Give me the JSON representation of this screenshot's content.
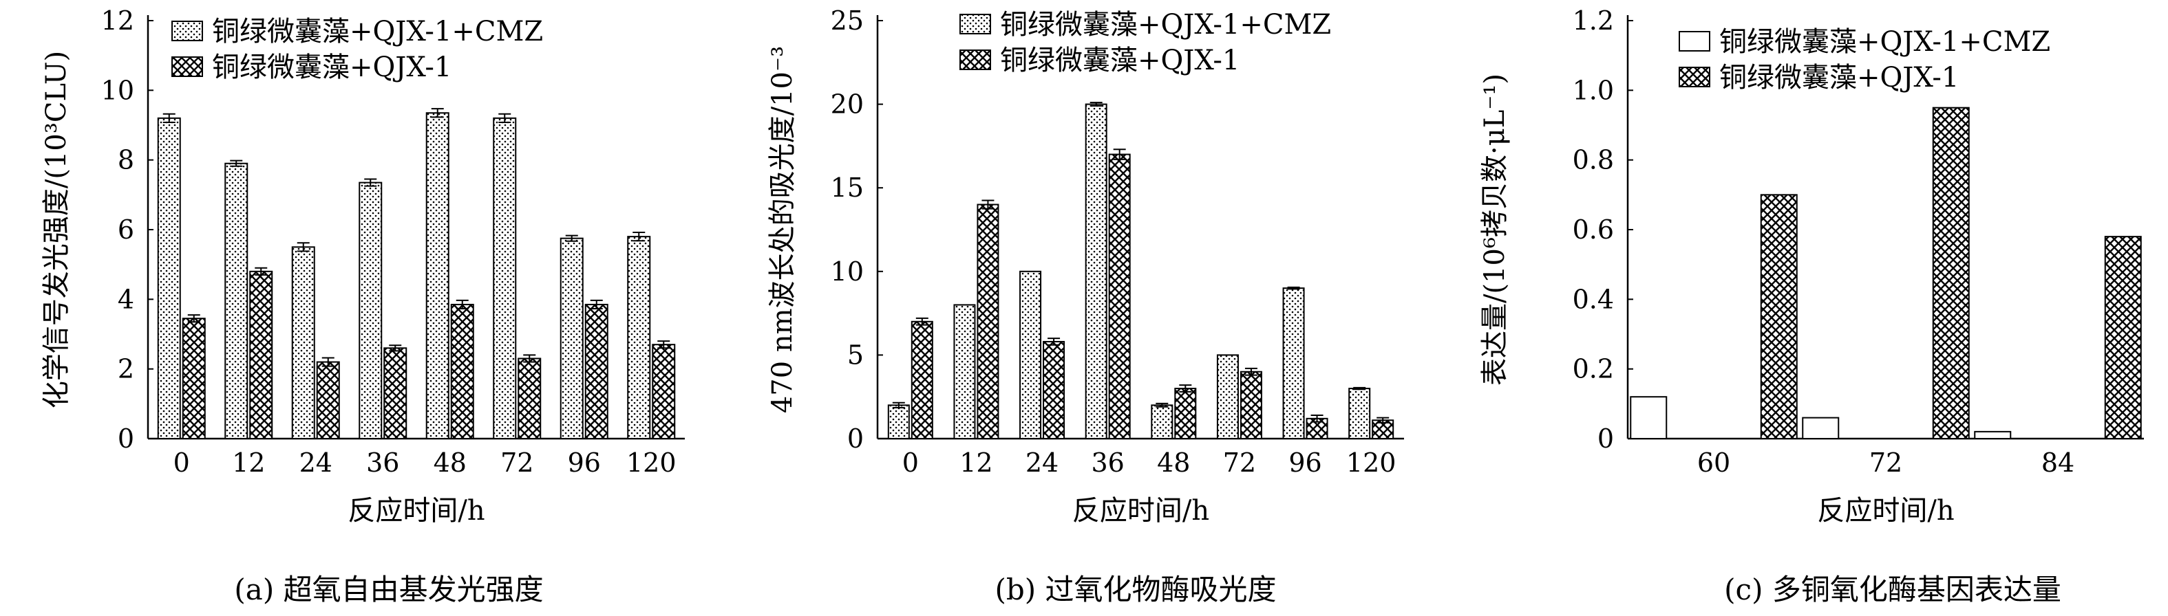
{
  "chart_data": [
    {
      "type": "bar",
      "caption": "(a) 超氧自由基发光强度",
      "xlabel": "反应时间/h",
      "ylabel": "化学信号发光强度/(10³CLU)",
      "ylim": [
        0,
        12
      ],
      "yticks": [
        "0",
        "2",
        "4",
        "6",
        "8",
        "10",
        "12"
      ],
      "categories": [
        "0",
        "12",
        "24",
        "36",
        "48",
        "72",
        "96",
        "120"
      ],
      "legend_position": "top",
      "series": [
        {
          "name": "铜绿微囊藻+QJX-1+CMZ",
          "pattern": "dots",
          "values": [
            9.2,
            7.9,
            5.5,
            7.35,
            9.35,
            9.2,
            5.75,
            5.8
          ],
          "errors": [
            0.12,
            0.08,
            0.12,
            0.1,
            0.12,
            0.12,
            0.08,
            0.12
          ]
        },
        {
          "name": "铜绿微囊藻+QJX-1",
          "pattern": "crosshatch",
          "values": [
            3.45,
            4.8,
            2.2,
            2.6,
            3.85,
            2.3,
            3.85,
            2.7
          ],
          "errors": [
            0.1,
            0.1,
            0.12,
            0.08,
            0.12,
            0.1,
            0.12,
            0.1
          ]
        }
      ]
    },
    {
      "type": "bar",
      "caption": "(b) 过氧化物酶吸光度",
      "xlabel": "反应时间/h",
      "ylabel": "470 nm波长处的吸光度/10⁻³",
      "ylim": [
        0,
        25
      ],
      "yticks": [
        "0",
        "5",
        "10",
        "15",
        "20",
        "25"
      ],
      "categories": [
        "0",
        "12",
        "24",
        "36",
        "48",
        "72",
        "96",
        "120"
      ],
      "legend_position": "top",
      "series": [
        {
          "name": "铜绿微囊藻+QJX-1+CMZ",
          "pattern": "dots",
          "values": [
            2.0,
            8.0,
            10.0,
            20.0,
            2.0,
            5.0,
            9.0,
            3.0
          ],
          "errors": [
            0.15,
            0,
            0,
            0.1,
            0.1,
            0,
            0.05,
            0.05
          ]
        },
        {
          "name": "铜绿微囊藻+QJX-1",
          "pattern": "crosshatch",
          "values": [
            7.0,
            14.0,
            5.8,
            17.0,
            3.0,
            4.0,
            1.2,
            1.1
          ],
          "errors": [
            0.2,
            0.25,
            0.2,
            0.3,
            0.2,
            0.2,
            0.2,
            0.15
          ]
        }
      ]
    },
    {
      "type": "bar",
      "caption": "(c) 多铜氧化酶基因表达量",
      "xlabel": "反应时间/h",
      "ylabel": "表达量/(10⁶拷贝数·μL⁻¹)",
      "ylim": [
        0,
        1.2
      ],
      "yticks": [
        "0",
        "0.2",
        "0.4",
        "0.6",
        "0.8",
        "1.0",
        "1.2"
      ],
      "categories": [
        "60",
        "72",
        "84"
      ],
      "legend_position": "top",
      "series": [
        {
          "name": "铜绿微囊藻+QJX-1+CMZ",
          "pattern": "blank",
          "values": [
            0.12,
            0.06,
            0.02
          ],
          "errors": [
            0,
            0,
            0
          ]
        },
        {
          "name": "铜绿微囊藻+QJX-1",
          "pattern": "crosshatch",
          "values": [
            0.7,
            0.95,
            0.58
          ],
          "errors": [
            0,
            0,
            0
          ]
        }
      ]
    }
  ]
}
